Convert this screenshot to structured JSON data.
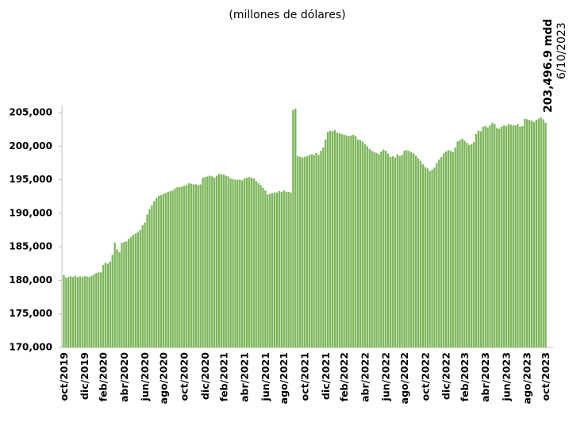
{
  "chart_data": {
    "type": "bar",
    "subtitle": "(millones de dólares)",
    "annotation": "203,496.9 mdd",
    "annotation_date": "6/10/2023",
    "color": "#7cb65a",
    "ylim": [
      170000,
      206000
    ],
    "yticks": [
      {
        "value": 170000,
        "label": "170,000"
      },
      {
        "value": 175000,
        "label": "175,000"
      },
      {
        "value": 180000,
        "label": "180,000"
      },
      {
        "value": 185000,
        "label": "185,000"
      },
      {
        "value": 190000,
        "label": "190,000"
      },
      {
        "value": 195000,
        "label": "195,000"
      },
      {
        "value": 200000,
        "label": "200,000"
      },
      {
        "value": 205000,
        "label": "205,000"
      }
    ],
    "grid": false,
    "categories": [
      "oct/2019",
      null,
      null,
      null,
      null,
      null,
      null,
      null,
      null,
      "dic/2019",
      null,
      null,
      null,
      null,
      null,
      null,
      null,
      "feb/2020",
      null,
      null,
      null,
      null,
      null,
      null,
      null,
      null,
      "abr/2020",
      null,
      null,
      null,
      null,
      null,
      null,
      null,
      null,
      "jun/2020",
      null,
      null,
      null,
      null,
      null,
      null,
      null,
      "ago/2020",
      null,
      null,
      null,
      null,
      null,
      null,
      null,
      null,
      "oct/2020",
      null,
      null,
      null,
      null,
      null,
      null,
      null,
      null,
      "dic/2020",
      null,
      null,
      null,
      null,
      null,
      null,
      null,
      "feb/2021",
      null,
      null,
      null,
      null,
      null,
      null,
      null,
      null,
      "abr/2021",
      null,
      null,
      null,
      null,
      null,
      null,
      null,
      null,
      "jun/2021",
      null,
      null,
      null,
      null,
      null,
      null,
      null,
      "ago/2021",
      null,
      null,
      null,
      null,
      null,
      null,
      null,
      null,
      "oct/2021",
      null,
      null,
      null,
      null,
      null,
      null,
      null,
      null,
      "dic/2021",
      null,
      null,
      null,
      null,
      null,
      null,
      null,
      "feb/2022",
      null,
      null,
      null,
      null,
      null,
      null,
      null,
      null,
      "abr/2022",
      null,
      null,
      null,
      null,
      null,
      null,
      null,
      null,
      "jun/2022",
      null,
      null,
      null,
      null,
      null,
      null,
      null,
      "ago/2022",
      null,
      null,
      null,
      null,
      null,
      null,
      null,
      null,
      "oct/2022",
      null,
      null,
      null,
      null,
      null,
      null,
      null,
      null,
      "dic/2022",
      null,
      null,
      null,
      null,
      null,
      null,
      null,
      "feb/2023",
      null,
      null,
      null,
      null,
      null,
      null,
      null,
      null,
      "abr/2023",
      null,
      null,
      null,
      null,
      null,
      null,
      null,
      null,
      "jun/2023",
      null,
      null,
      null,
      null,
      null,
      null,
      null,
      null,
      "ago/2023",
      null,
      null,
      null,
      null,
      null,
      null,
      null,
      "oct/2023"
    ],
    "values": [
      180800,
      180400,
      180500,
      180600,
      180500,
      180700,
      180500,
      180600,
      180500,
      180600,
      180600,
      180500,
      180700,
      180900,
      181100,
      181200,
      181200,
      182300,
      182600,
      182500,
      182800,
      183800,
      185600,
      184600,
      184200,
      185600,
      185700,
      185800,
      186200,
      186500,
      186800,
      187000,
      187200,
      187500,
      188200,
      188600,
      189800,
      190600,
      191200,
      191800,
      192300,
      192600,
      192700,
      192900,
      193000,
      193200,
      193300,
      193400,
      193700,
      193900,
      193900,
      194000,
      194100,
      194200,
      194500,
      194400,
      194300,
      194300,
      194200,
      194300,
      195300,
      195400,
      195500,
      195600,
      195500,
      195300,
      195600,
      195900,
      195800,
      195800,
      195600,
      195500,
      195200,
      195100,
      195000,
      195000,
      195000,
      194900,
      195200,
      195300,
      195400,
      195300,
      195200,
      194800,
      194500,
      194200,
      193800,
      193400,
      192800,
      192900,
      193000,
      193100,
      193100,
      193300,
      193200,
      193400,
      193200,
      193200,
      193100,
      205400,
      205600,
      198500,
      198400,
      198300,
      198400,
      198500,
      198700,
      198800,
      198700,
      199000,
      198700,
      199300,
      199800,
      201000,
      202100,
      202300,
      202200,
      202400,
      202000,
      201900,
      201800,
      201700,
      201600,
      201500,
      201600,
      201700,
      201500,
      201000,
      200900,
      200700,
      200300,
      200000,
      199600,
      199300,
      199100,
      199000,
      198800,
      199200,
      199500,
      199300,
      198900,
      198400,
      198500,
      198300,
      198800,
      198500,
      198700,
      199300,
      199400,
      199300,
      199100,
      198900,
      198600,
      198200,
      197800,
      197300,
      196900,
      196700,
      196300,
      196500,
      196800,
      197500,
      198000,
      198400,
      198900,
      199200,
      199400,
      199300,
      199100,
      199800,
      200700,
      200900,
      201100,
      200800,
      200500,
      200200,
      200300,
      200600,
      201800,
      202300,
      202200,
      202900,
      203000,
      202800,
      203100,
      203500,
      203300,
      202700,
      202600,
      202900,
      203100,
      203000,
      203300,
      203200,
      203100,
      203100,
      203300,
      202900,
      203000,
      204100,
      204000,
      203900,
      203800,
      203600,
      203900,
      204100,
      204300,
      204000,
      203496.9
    ]
  }
}
